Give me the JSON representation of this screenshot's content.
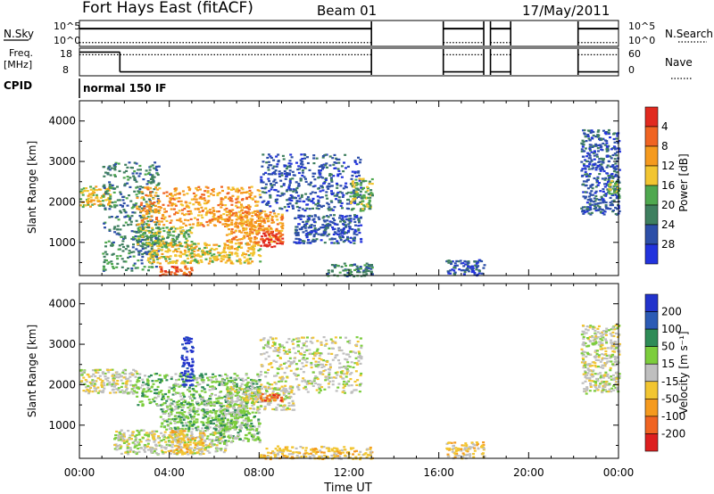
{
  "header": {
    "title": "Fort Hays East (fitACF)",
    "beam": "Beam 01",
    "date": "17/May/2011"
  },
  "summary_panel": {
    "left_top_label": "N.Sky",
    "left_tick_high": "10^5",
    "left_tick_low": "10^0",
    "right_label": "N.Search",
    "right_tick_high": "10^5",
    "right_tick_low": "10^0",
    "freq_label_line1": "Freq.",
    "freq_label_line2": "[MHz]",
    "freq_tick_high": "18",
    "freq_tick_low": "8",
    "nave_label": "Nave",
    "nave_tick_high": "60",
    "nave_tick_low": "0",
    "cpid_label": "CPID",
    "cpid_value": "normal 150 IF"
  },
  "colors": {
    "power_scale": [
      "#2233dd",
      "#2d4fa8",
      "#3f7f5f",
      "#4fa84f",
      "#f2c531",
      "#f59a1e",
      "#f06422",
      "#e12a1f"
    ],
    "velocity_scale": [
      "#2233cc",
      "#2c5bb5",
      "#2e8b57",
      "#7ccd3c",
      "#bfbfbf",
      "#f2c531",
      "#f59a1e",
      "#f06422",
      "#dd1f1f"
    ]
  },
  "chart_data": [
    {
      "type": "heatmap",
      "name": "power",
      "xlabel": "",
      "ylabel": "Slant Range [km]",
      "ylim": [
        180,
        4500
      ],
      "yticks": [
        "1000",
        "2000",
        "3000",
        "4000"
      ],
      "colorbar": {
        "label": "Power [dB]",
        "ticks": [
          "4",
          "8",
          "12",
          "16",
          "20",
          "24",
          "28"
        ]
      },
      "regions": [
        {
          "t0": 0.0,
          "t1": 1.4,
          "r0": 1900,
          "r1": 2400,
          "level": 4
        },
        {
          "t0": 1.0,
          "t1": 3.5,
          "r0": 300,
          "r1": 3000,
          "level": 2
        },
        {
          "t0": 2.5,
          "t1": 8.0,
          "r0": 1400,
          "r1": 2400,
          "level": 5
        },
        {
          "t0": 2.5,
          "t1": 5.0,
          "r0": 900,
          "r1": 1400,
          "level": 3
        },
        {
          "t0": 3.0,
          "t1": 8.0,
          "r0": 500,
          "r1": 1000,
          "level": 4
        },
        {
          "t0": 6.5,
          "t1": 9.0,
          "r0": 1000,
          "r1": 1800,
          "level": 5
        },
        {
          "t0": 8.0,
          "t1": 9.0,
          "r0": 900,
          "r1": 1300,
          "level": 7
        },
        {
          "t0": 3.5,
          "t1": 5.0,
          "r0": 200,
          "r1": 450,
          "level": 6
        },
        {
          "t0": 8.0,
          "t1": 12.5,
          "r0": 1800,
          "r1": 3200,
          "level": 1
        },
        {
          "t0": 9.5,
          "t1": 12.5,
          "r0": 1000,
          "r1": 1700,
          "level": 1
        },
        {
          "t0": 11.0,
          "t1": 13.0,
          "r0": 180,
          "r1": 500,
          "level": 2
        },
        {
          "t0": 12.0,
          "t1": 13.0,
          "r0": 1800,
          "r1": 2600,
          "level": 3
        },
        {
          "t0": 16.3,
          "t1": 18.0,
          "r0": 200,
          "r1": 600,
          "level": 1
        },
        {
          "t0": 22.3,
          "t1": 24.0,
          "r0": 1700,
          "r1": 3800,
          "level": 1
        },
        {
          "t0": 23.5,
          "t1": 24.0,
          "r0": 2100,
          "r1": 2600,
          "level": 3
        }
      ]
    },
    {
      "type": "heatmap",
      "name": "velocity",
      "xlabel": "Time UT",
      "ylabel": "Slant Range [km]",
      "ylim": [
        180,
        4500
      ],
      "yticks": [
        "1000",
        "2000",
        "3000",
        "4000"
      ],
      "xticks": [
        "00:00",
        "04:00",
        "08:00",
        "12:00",
        "16:00",
        "20:00",
        "00:00"
      ],
      "colorbar": {
        "label": "Velocity [m s⁻¹]",
        "ticks": [
          "200",
          "100",
          "50",
          "15",
          "-15",
          "-50",
          "-100",
          "-200"
        ]
      },
      "regions": [
        {
          "t0": 0.0,
          "t1": 2.5,
          "r0": 1800,
          "r1": 2400,
          "level": 4
        },
        {
          "t0": 1.5,
          "t1": 6.5,
          "r0": 300,
          "r1": 900,
          "level": 4
        },
        {
          "t0": 2.5,
          "t1": 8.0,
          "r0": 1500,
          "r1": 2300,
          "level": 3
        },
        {
          "t0": 3.5,
          "t1": 7.5,
          "r0": 900,
          "r1": 1600,
          "level": 3
        },
        {
          "t0": 4.0,
          "t1": 5.5,
          "r0": 300,
          "r1": 900,
          "level": 5
        },
        {
          "t0": 6.5,
          "t1": 9.5,
          "r0": 1400,
          "r1": 2000,
          "level": 4
        },
        {
          "t0": 8.0,
          "t1": 9.0,
          "r0": 1600,
          "r1": 1800,
          "level": 7
        },
        {
          "t0": 6.0,
          "t1": 8.0,
          "r0": 600,
          "r1": 1400,
          "level": 3
        },
        {
          "t0": 4.5,
          "t1": 5.0,
          "r0": 2000,
          "r1": 3200,
          "level": 0
        },
        {
          "t0": 8.0,
          "t1": 12.5,
          "r0": 1800,
          "r1": 3200,
          "level": 4
        },
        {
          "t0": 8.0,
          "t1": 13.0,
          "r0": 180,
          "r1": 500,
          "level": 5
        },
        {
          "t0": 16.3,
          "t1": 18.0,
          "r0": 200,
          "r1": 600,
          "level": 5
        },
        {
          "t0": 22.3,
          "t1": 24.0,
          "r0": 1800,
          "r1": 3500,
          "level": 4
        }
      ]
    }
  ],
  "summary_series": {
    "nsky_level": 0.7,
    "nsearch_level": 0.12,
    "freq_high_until_hour": 1.8,
    "freq_high": 0.88,
    "freq_low": 0.12,
    "gaps": [
      [
        13.0,
        16.2
      ],
      [
        18.0,
        18.3
      ],
      [
        19.2,
        22.2
      ]
    ]
  }
}
